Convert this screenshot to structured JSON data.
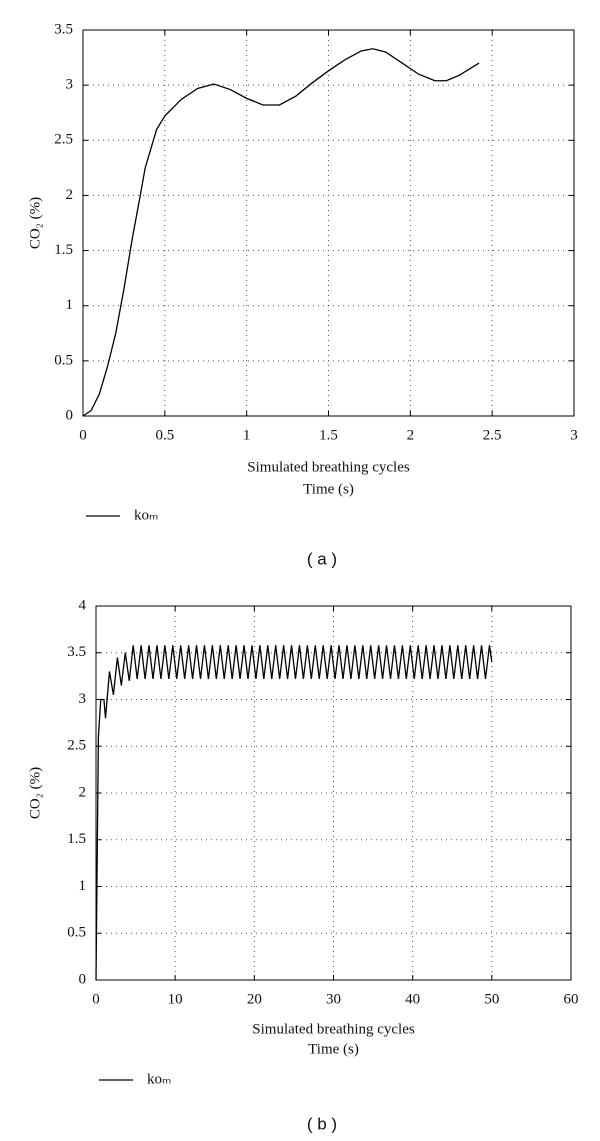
{
  "chart_data": [
    {
      "type": "line",
      "caption": "( a )",
      "x_label": "Simulated breathing cycles",
      "x_label_2": "Time (s)",
      "y_label": "CO₂ (%)",
      "xlim": [
        0,
        3
      ],
      "ylim": [
        0,
        3.5
      ],
      "xticks": [
        0,
        0.5,
        1,
        1.5,
        2,
        2.5,
        3
      ],
      "yticks": [
        0,
        0.5,
        1,
        1.5,
        2,
        2.5,
        3,
        3.5
      ],
      "grid": true,
      "x": [
        0,
        0.05,
        0.1,
        0.15,
        0.2,
        0.25,
        0.3,
        0.35,
        0.38,
        0.45,
        0.5,
        0.6,
        0.7,
        0.8,
        0.9,
        1.0,
        1.1,
        1.2,
        1.3,
        1.4,
        1.5,
        1.6,
        1.7,
        1.77,
        1.85,
        1.95,
        2.05,
        2.15,
        2.22,
        2.3,
        2.42
      ],
      "series": [
        {
          "name": "koₘ",
          "color": "#000000",
          "values": [
            0,
            0.05,
            0.2,
            0.45,
            0.75,
            1.15,
            1.6,
            2.0,
            2.25,
            2.6,
            2.72,
            2.87,
            2.97,
            3.01,
            2.96,
            2.88,
            2.82,
            2.82,
            2.9,
            3.02,
            3.13,
            3.23,
            3.31,
            3.33,
            3.3,
            3.2,
            3.1,
            3.04,
            3.04,
            3.09,
            3.2
          ]
        }
      ]
    },
    {
      "type": "line",
      "caption": "( b )",
      "x_label": "Simulated breathing cycles",
      "x_label_2": "Time (s)",
      "y_label": "CO₂ (%)",
      "xlim": [
        0,
        60
      ],
      "ylim": [
        0,
        4
      ],
      "xticks": [
        0,
        10,
        20,
        30,
        40,
        50,
        60
      ],
      "yticks": [
        0,
        0.5,
        1,
        1.5,
        2,
        2.5,
        3,
        3.5,
        4
      ],
      "grid": true,
      "x": [
        0,
        0.3,
        0.6,
        1,
        1.2,
        1.7,
        2.2,
        2.7,
        3.2,
        3.7,
        4.2,
        4.7,
        5.2,
        5.7,
        6.2,
        6.7,
        7.2,
        7.7,
        8.2,
        8.7,
        9.2,
        9.7,
        10.2,
        10.7,
        11.2,
        11.7,
        12.2,
        12.7,
        13.2,
        13.7,
        14.2,
        14.7,
        15.2,
        15.7,
        16.2,
        16.7,
        17.2,
        17.7,
        18.2,
        18.7,
        19.2,
        19.7,
        20.2,
        20.7,
        21.2,
        21.7,
        22.2,
        22.7,
        23.2,
        23.7,
        24.2,
        24.7,
        25.2,
        25.7,
        26.2,
        26.7,
        27.2,
        27.7,
        28.2,
        28.7,
        29.2,
        29.7,
        30.2,
        30.7,
        31.2,
        31.7,
        32.2,
        32.7,
        33.2,
        33.7,
        34.2,
        34.7,
        35.2,
        35.7,
        36.2,
        36.7,
        37.2,
        37.7,
        38.2,
        38.7,
        39.2,
        39.7,
        40.2,
        40.7,
        41.2,
        41.7,
        42.2,
        42.7,
        43.2,
        43.7,
        44.2,
        44.7,
        45.2,
        45.7,
        46.2,
        46.7,
        47.2,
        47.7,
        48.2,
        48.7,
        49.2,
        49.7,
        50
      ],
      "series": [
        {
          "name": "koₘ",
          "color": "#000000",
          "values": [
            0,
            2.6,
            3.0,
            3.0,
            2.8,
            3.3,
            3.05,
            3.45,
            3.15,
            3.5,
            3.2,
            3.58,
            3.22,
            3.58,
            3.22,
            3.58,
            3.22,
            3.58,
            3.22,
            3.58,
            3.22,
            3.58,
            3.22,
            3.58,
            3.22,
            3.58,
            3.22,
            3.58,
            3.22,
            3.58,
            3.22,
            3.58,
            3.22,
            3.58,
            3.22,
            3.58,
            3.22,
            3.58,
            3.22,
            3.58,
            3.22,
            3.58,
            3.22,
            3.58,
            3.22,
            3.58,
            3.22,
            3.58,
            3.22,
            3.58,
            3.22,
            3.58,
            3.22,
            3.58,
            3.22,
            3.58,
            3.22,
            3.58,
            3.22,
            3.58,
            3.22,
            3.58,
            3.22,
            3.58,
            3.22,
            3.58,
            3.22,
            3.58,
            3.22,
            3.58,
            3.22,
            3.58,
            3.22,
            3.58,
            3.22,
            3.58,
            3.22,
            3.58,
            3.22,
            3.58,
            3.22,
            3.58,
            3.22,
            3.58,
            3.22,
            3.58,
            3.22,
            3.58,
            3.22,
            3.58,
            3.22,
            3.58,
            3.22,
            3.58,
            3.22,
            3.58,
            3.22,
            3.58,
            3.22,
            3.58,
            3.22,
            3.58,
            3.4
          ]
        }
      ]
    }
  ]
}
